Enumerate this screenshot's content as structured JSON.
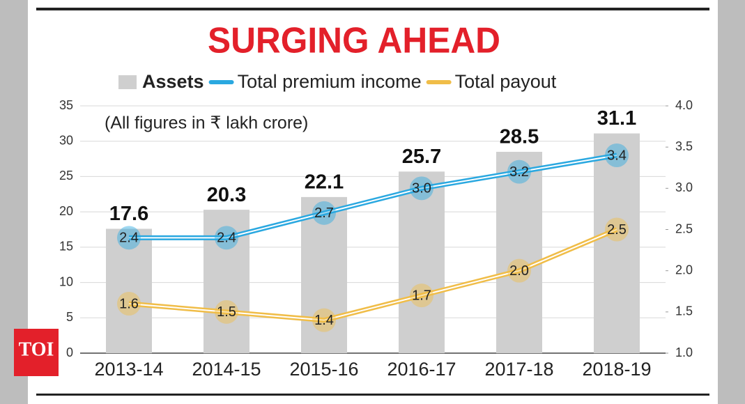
{
  "logo": "TOI",
  "chart_data": {
    "type": "bar",
    "title": "SURGING AHEAD",
    "subtitle": "(All figures in ₹ lakh crore)",
    "categories": [
      "2013-14",
      "2014-15",
      "2015-16",
      "2016-17",
      "2017-18",
      "2018-19"
    ],
    "series": [
      {
        "name": "Assets",
        "type": "bar",
        "color": "#cfcfcf",
        "values": [
          17.6,
          20.3,
          22.1,
          25.7,
          28.5,
          31.1
        ]
      },
      {
        "name": "Total premium income",
        "type": "line",
        "axis": "y2",
        "color": "#2aa8e0",
        "values": [
          2.4,
          2.4,
          2.7,
          3.0,
          3.2,
          3.4
        ],
        "value_labels": [
          "2.4",
          "2.4",
          "2.7",
          "3.0",
          "3.2",
          "3.4"
        ]
      },
      {
        "name": "Total payout",
        "type": "line",
        "axis": "y2",
        "color": "#f0bd48",
        "values": [
          1.6,
          1.5,
          1.4,
          1.7,
          2.0,
          2.5
        ],
        "value_labels": [
          "1.6",
          "1.5",
          "1.4",
          "1.7",
          "2.0",
          "2.5"
        ]
      }
    ],
    "ylim": [
      0,
      35
    ],
    "yticks": [
      0,
      5,
      10,
      15,
      20,
      25,
      30,
      35
    ],
    "y2lim": [
      1,
      4
    ],
    "y2ticks": [
      {
        "value": 1,
        "label": "1.0"
      },
      1.5,
      {
        "value": 2,
        "label": "2.0"
      },
      2.5,
      {
        "value": 3,
        "label": "3.0"
      },
      3.5,
      {
        "value": 4,
        "label": "4.0"
      }
    ],
    "grid": true
  }
}
